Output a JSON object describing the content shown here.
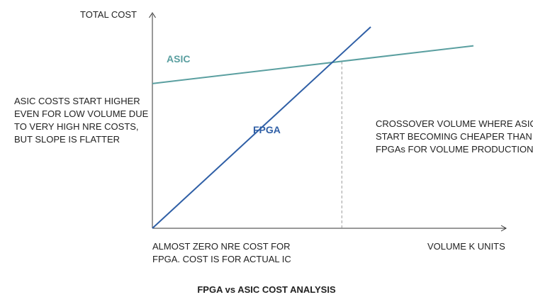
{
  "chart_data": {
    "type": "line",
    "title": "FPGA vs ASIC COST ANALYSIS",
    "ylabel": "TOTAL COST",
    "xlabel": "VOLUME K UNITS",
    "grid": false,
    "legend": "inline labels",
    "series": [
      {
        "name": "ASIC",
        "color": "#5a9fa0",
        "x": [
          0,
          10
        ],
        "y": [
          46,
          58
        ]
      },
      {
        "name": "FPGA",
        "color": "#2f5fa6",
        "x": [
          0,
          6.8
        ],
        "y": [
          0,
          64
        ]
      }
    ],
    "crossover": {
      "x": 5.9,
      "y": 53
    },
    "xlim": [
      0,
      10
    ],
    "ylim": [
      0,
      64
    ],
    "annotations": {
      "asic_note": "ASIC COSTS START HIGHER\nEVEN FOR LOW VOLUME DUE\nTO VERY HIGH NRE COSTS,\nBUT SLOPE IS FLATTER",
      "crossover_note": "CROSSOVER VOLUME WHERE ASICs\nSTART BECOMING CHEAPER THAN\nFPGAs FOR VOLUME PRODUCTION",
      "fpga_note": "ALMOST ZERO NRE COST FOR\nFPGA. COST IS FOR ACTUAL IC"
    }
  }
}
